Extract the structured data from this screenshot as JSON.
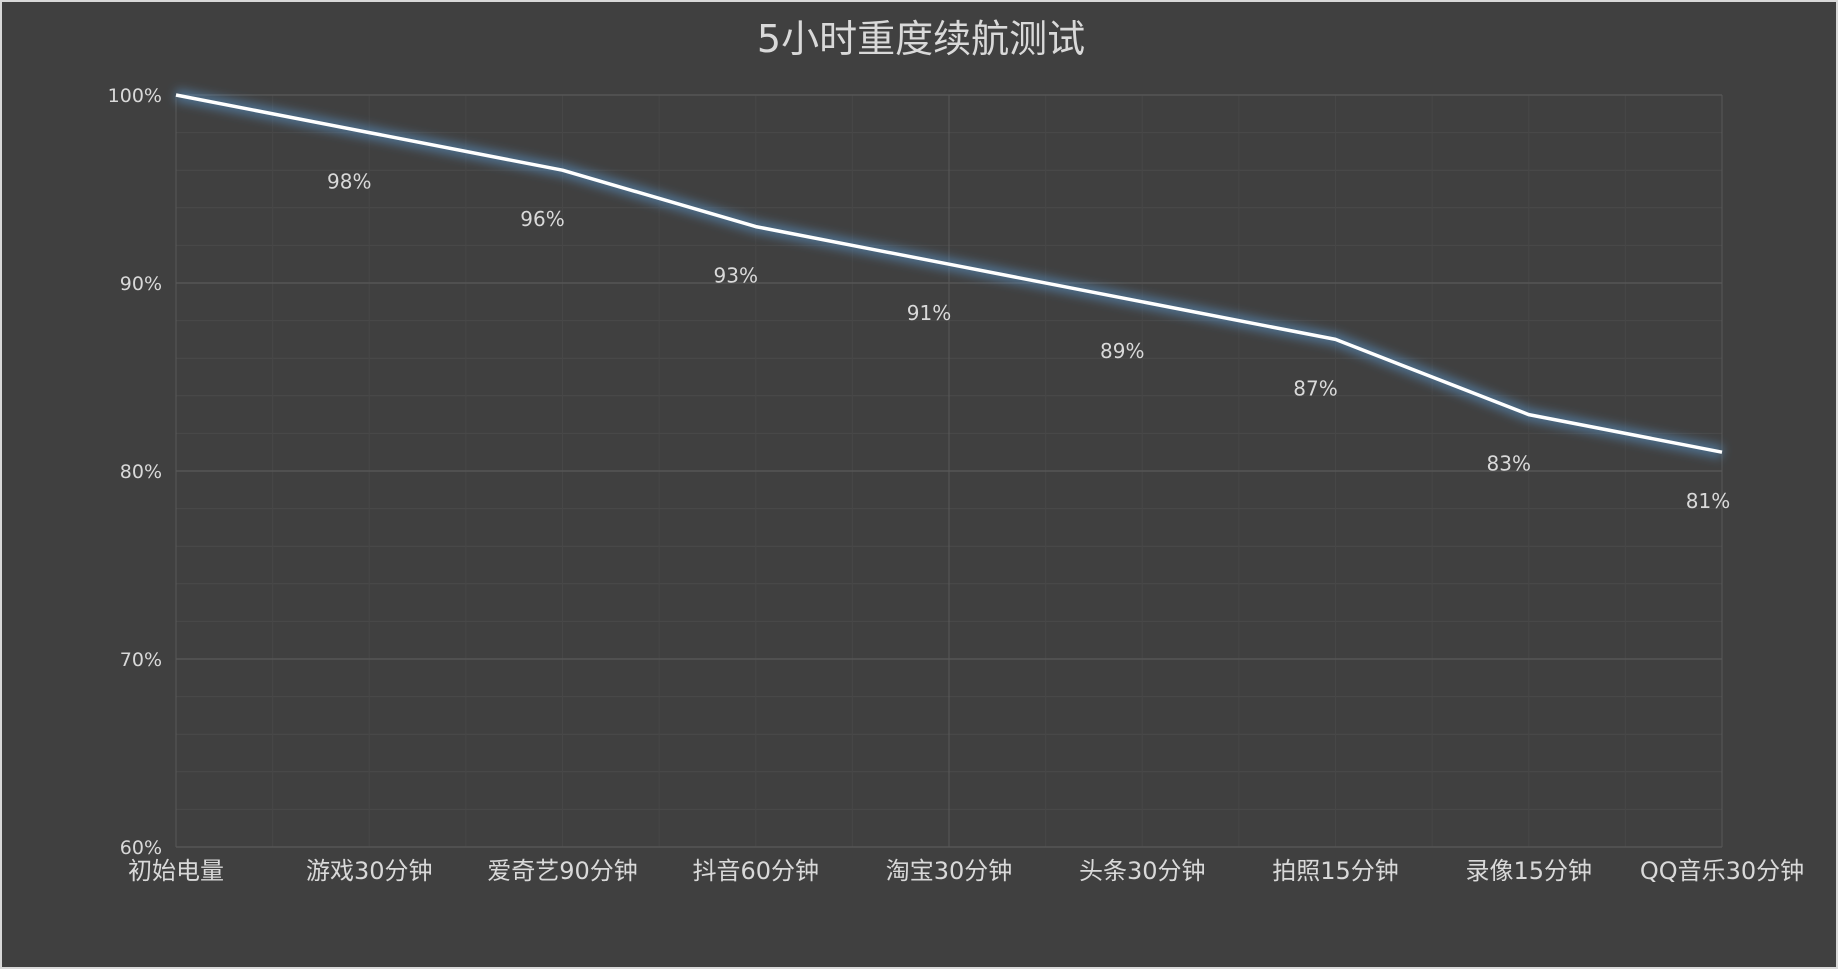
{
  "chart_data": {
    "type": "line",
    "title": "5小时重度续航测试",
    "categories": [
      "初始电量",
      "游戏30分钟",
      "爱奇艺90分钟",
      "抖音60分钟",
      "淘宝30分钟",
      "头条30分钟",
      "拍照15分钟",
      "录像15分钟",
      "QQ音乐30分钟"
    ],
    "series": [
      {
        "values": [
          100,
          98,
          96,
          93,
          91,
          89,
          87,
          83,
          81
        ],
        "labels": [
          "",
          "98%",
          "96%",
          "93%",
          "91%",
          "89%",
          "87%",
          "83%",
          "81%"
        ]
      }
    ],
    "ylim": [
      60,
      100
    ],
    "yticks": [
      60,
      70,
      80,
      90,
      100
    ],
    "ytick_labels": [
      "60%",
      "70%",
      "80%",
      "90%",
      "100%"
    ],
    "grid": true,
    "colors": {
      "background": "#404040",
      "line": "#ffffff",
      "glow": "#5b9bd5",
      "text": "#d9d9d9",
      "gridline": "#595959"
    }
  }
}
